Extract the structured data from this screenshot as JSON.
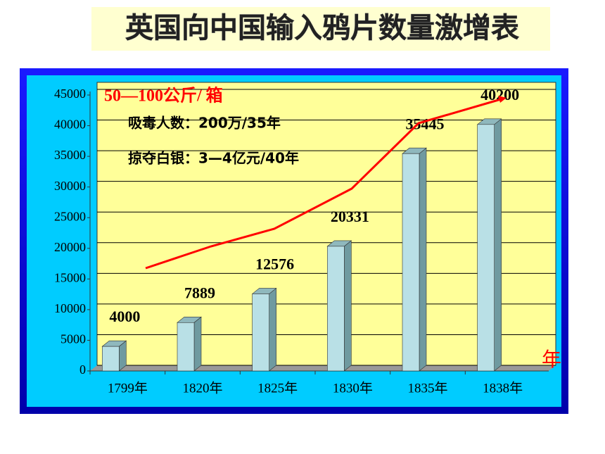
{
  "chart_data": {
    "type": "bar",
    "title": "英国向中国输入鸦片数量激增表",
    "unit_label": "50—100公斤/ 箱",
    "notes": [
      "吸毒人数：200万/35年",
      "掠夺白银：3—4亿元/40年"
    ],
    "x_unit": "年",
    "categories": [
      "1799年",
      "1820年",
      "1825年",
      "1830年",
      "1835年",
      "1838年"
    ],
    "values": [
      4000,
      7889,
      12576,
      20331,
      35445,
      40200
    ],
    "color": "#b9e0e6",
    "ylim": [
      0,
      45000
    ],
    "yticks": [
      0,
      5000,
      10000,
      15000,
      20000,
      25000,
      30000,
      35000,
      40000,
      45000
    ],
    "grid": true
  }
}
